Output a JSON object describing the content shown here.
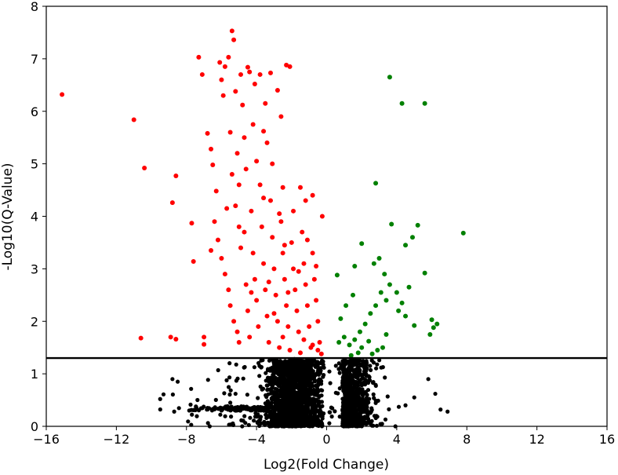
{
  "chart_data": {
    "type": "scatter",
    "title": "",
    "xlabel": "Log2(Fold Change)",
    "ylabel": "-Log10(Q-Value)",
    "xlim": [
      -16,
      16
    ],
    "ylim": [
      0,
      8
    ],
    "xticks": [
      -16,
      -12,
      -8,
      -4,
      0,
      4,
      8,
      12,
      16
    ],
    "xtick_labels": [
      "−16",
      "−12",
      "−8",
      "−4",
      "0",
      "4",
      "8",
      "12",
      "16"
    ],
    "yticks": [
      0,
      1,
      2,
      3,
      4,
      5,
      6,
      7,
      8
    ],
    "ytick_labels": [
      "0",
      "1",
      "2",
      "3",
      "4",
      "5",
      "6",
      "7",
      "8"
    ],
    "grid": false,
    "legend": "none",
    "threshold_line": {
      "y": 1.3,
      "color": "#000000"
    },
    "series": [
      {
        "color": "#ff0000",
        "points": [
          [
            -15.1,
            6.32
          ],
          [
            -11.0,
            5.84
          ],
          [
            -10.4,
            4.92
          ],
          [
            -10.6,
            1.68
          ],
          [
            -8.8,
            4.26
          ],
          [
            -8.6,
            4.77
          ],
          [
            -8.9,
            1.7
          ],
          [
            -8.6,
            1.66
          ],
          [
            -7.7,
            3.87
          ],
          [
            -7.6,
            3.14
          ],
          [
            -7.3,
            7.03
          ],
          [
            -7.1,
            6.7
          ],
          [
            -7.0,
            1.7
          ],
          [
            -7.0,
            1.56
          ],
          [
            -6.8,
            5.58
          ],
          [
            -6.6,
            5.28
          ],
          [
            -6.5,
            4.98
          ],
          [
            -6.3,
            4.48
          ],
          [
            -6.1,
            6.93
          ],
          [
            -6.0,
            6.6
          ],
          [
            -5.9,
            6.3
          ],
          [
            -5.8,
            6.85
          ],
          [
            -5.6,
            7.03
          ],
          [
            -5.4,
            7.53
          ],
          [
            -5.3,
            7.36
          ],
          [
            -5.2,
            6.38
          ],
          [
            -5.5,
            5.6
          ],
          [
            -5.4,
            4.8
          ],
          [
            -5.1,
            5.2
          ],
          [
            -5.0,
            4.6
          ],
          [
            -5.2,
            4.2
          ],
          [
            -5.0,
            3.8
          ],
          [
            -4.9,
            6.7
          ],
          [
            -4.8,
            6.12
          ],
          [
            -4.7,
            5.5
          ],
          [
            -4.6,
            4.9
          ],
          [
            -4.5,
            6.84
          ],
          [
            -4.4,
            6.75
          ],
          [
            -4.2,
            5.75
          ],
          [
            -4.1,
            6.52
          ],
          [
            -4.0,
            5.05
          ],
          [
            -3.8,
            6.7
          ],
          [
            -3.6,
            5.62
          ],
          [
            -3.5,
            6.15
          ],
          [
            -3.4,
            5.4
          ],
          [
            -3.2,
            6.73
          ],
          [
            -3.1,
            5.0
          ],
          [
            -2.8,
            6.4
          ],
          [
            -2.6,
            5.9
          ],
          [
            -2.5,
            4.55
          ],
          [
            -2.3,
            6.88
          ],
          [
            -2.1,
            6.85
          ],
          [
            -1.9,
            4.1
          ],
          [
            -1.5,
            4.55
          ],
          [
            -1.2,
            4.3
          ],
          [
            -0.8,
            4.4
          ],
          [
            -6.4,
            3.9
          ],
          [
            -6.2,
            3.55
          ],
          [
            -6.0,
            3.2
          ],
          [
            -5.8,
            2.9
          ],
          [
            -5.6,
            2.6
          ],
          [
            -5.5,
            2.3
          ],
          [
            -5.3,
            2.0
          ],
          [
            -5.1,
            1.8
          ],
          [
            -5.0,
            1.6
          ],
          [
            -4.9,
            3.4
          ],
          [
            -4.7,
            3.7
          ],
          [
            -4.6,
            2.7
          ],
          [
            -4.5,
            2.2
          ],
          [
            -4.4,
            1.7
          ],
          [
            -4.3,
            4.1
          ],
          [
            -4.2,
            3.3
          ],
          [
            -4.1,
            2.8
          ],
          [
            -4.0,
            2.4
          ],
          [
            -3.9,
            1.9
          ],
          [
            -3.8,
            4.6
          ],
          [
            -3.7,
            3.8
          ],
          [
            -3.6,
            3.1
          ],
          [
            -3.5,
            2.6
          ],
          [
            -3.4,
            2.1
          ],
          [
            -3.3,
            1.6
          ],
          [
            -3.2,
            4.3
          ],
          [
            -3.1,
            3.6
          ],
          [
            -3.0,
            3.0
          ],
          [
            -2.9,
            2.5
          ],
          [
            -2.8,
            2.0
          ],
          [
            -2.7,
            1.5
          ],
          [
            -2.6,
            3.9
          ],
          [
            -2.5,
            3.3
          ],
          [
            -2.4,
            2.8
          ],
          [
            -2.3,
            2.3
          ],
          [
            -2.2,
            1.9
          ],
          [
            -2.1,
            1.45
          ],
          [
            -2.0,
            3.5
          ],
          [
            -1.9,
            3.0
          ],
          [
            -1.8,
            2.6
          ],
          [
            -1.7,
            2.2
          ],
          [
            -1.6,
            1.8
          ],
          [
            -1.5,
            1.4
          ],
          [
            -1.4,
            3.7
          ],
          [
            -1.3,
            3.1
          ],
          [
            -1.2,
            2.7
          ],
          [
            -1.1,
            2.3
          ],
          [
            -1.0,
            1.9
          ],
          [
            -0.9,
            1.5
          ],
          [
            -0.8,
            3.3
          ],
          [
            -0.7,
            2.8
          ],
          [
            -0.6,
            2.4
          ],
          [
            -0.5,
            2.0
          ],
          [
            -0.4,
            1.6
          ],
          [
            -0.3,
            1.38
          ],
          [
            -0.25,
            4.0
          ],
          [
            -1.6,
            2.95
          ],
          [
            -2.4,
            3.45
          ],
          [
            -3.3,
            2.75
          ],
          [
            -4.3,
            2.55
          ],
          [
            -5.7,
            4.15
          ],
          [
            -6.6,
            3.35
          ],
          [
            -2.7,
            4.05
          ],
          [
            -3.6,
            4.35
          ],
          [
            -1.1,
            3.55
          ],
          [
            -0.6,
            3.05
          ],
          [
            -2.2,
            2.55
          ],
          [
            -3.0,
            2.15
          ],
          [
            -1.3,
            1.65
          ],
          [
            -0.8,
            1.55
          ],
          [
            -0.5,
            1.45
          ],
          [
            -2.5,
            1.7
          ]
        ]
      },
      {
        "color": "#008000",
        "points": [
          [
            3.6,
            6.65
          ],
          [
            4.3,
            6.15
          ],
          [
            5.6,
            6.15
          ],
          [
            2.8,
            4.63
          ],
          [
            3.7,
            3.85
          ],
          [
            5.2,
            3.83
          ],
          [
            7.8,
            3.68
          ],
          [
            4.9,
            3.6
          ],
          [
            4.5,
            3.45
          ],
          [
            2.0,
            3.48
          ],
          [
            1.6,
            3.05
          ],
          [
            0.6,
            2.88
          ],
          [
            2.7,
            3.1
          ],
          [
            3.0,
            3.2
          ],
          [
            3.3,
            2.9
          ],
          [
            3.6,
            2.7
          ],
          [
            4.0,
            2.55
          ],
          [
            4.3,
            2.35
          ],
          [
            5.6,
            2.92
          ],
          [
            6.0,
            2.03
          ],
          [
            6.3,
            1.95
          ],
          [
            6.1,
            1.88
          ],
          [
            5.9,
            1.75
          ],
          [
            5.0,
            1.92
          ],
          [
            4.5,
            2.1
          ],
          [
            4.1,
            2.2
          ],
          [
            3.4,
            2.4
          ],
          [
            3.1,
            2.55
          ],
          [
            2.8,
            2.3
          ],
          [
            2.5,
            2.15
          ],
          [
            2.2,
            1.95
          ],
          [
            1.9,
            1.8
          ],
          [
            1.6,
            1.65
          ],
          [
            1.3,
            1.55
          ],
          [
            1.0,
            1.7
          ],
          [
            0.7,
            1.6
          ],
          [
            0.8,
            2.05
          ],
          [
            1.1,
            2.3
          ],
          [
            1.5,
            2.5
          ],
          [
            2.0,
            1.5
          ],
          [
            2.4,
            1.62
          ],
          [
            2.9,
            1.45
          ],
          [
            3.2,
            1.5
          ],
          [
            1.8,
            1.4
          ],
          [
            1.4,
            1.35
          ],
          [
            2.6,
            1.38
          ],
          [
            3.4,
            1.75
          ],
          [
            4.7,
            2.65
          ]
        ]
      }
    ]
  }
}
